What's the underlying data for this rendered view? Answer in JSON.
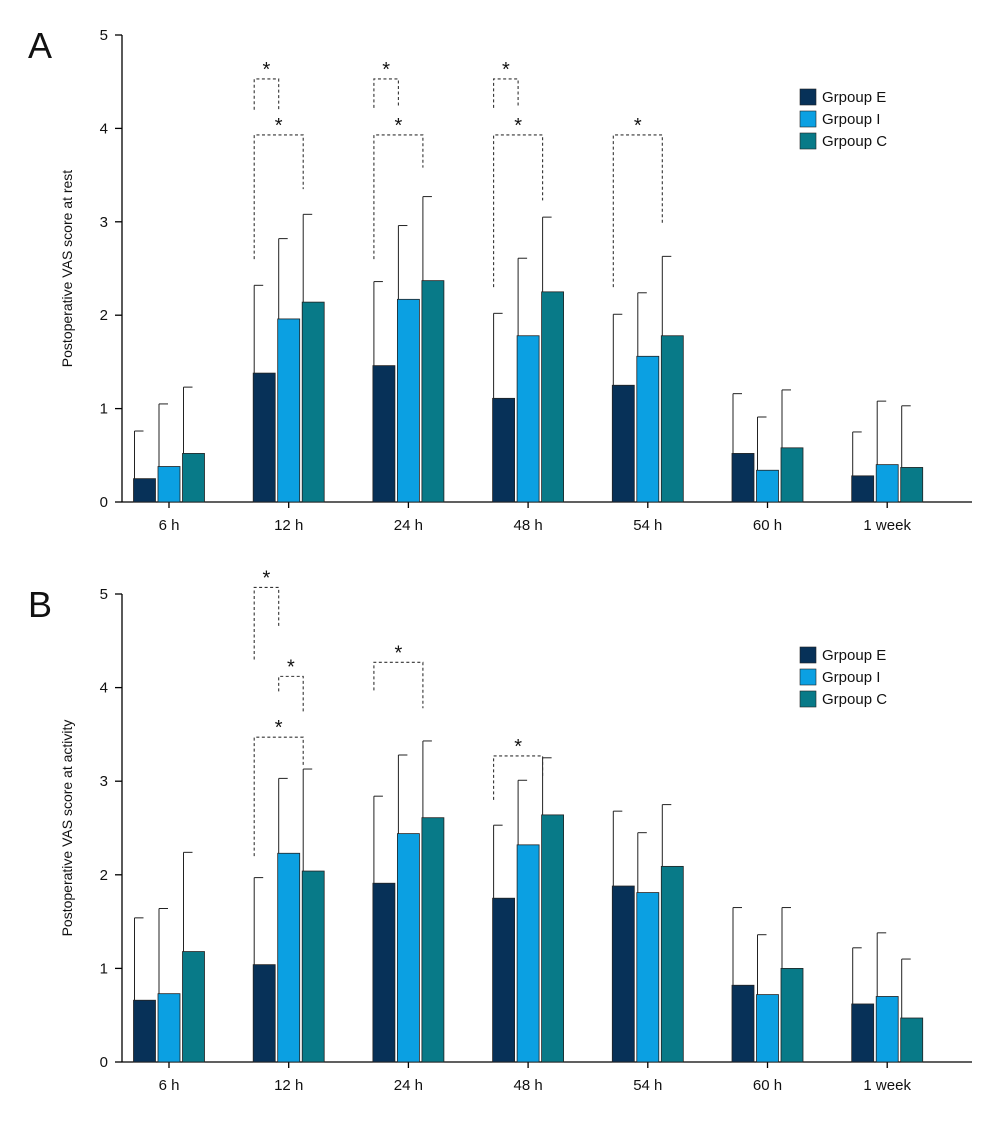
{
  "colors": {
    "E": "#073158",
    "I": "#0ba0e2",
    "C": "#087a88"
  },
  "chart_data": [
    {
      "type": "bar",
      "panel": "A",
      "title": "",
      "xlabel": "",
      "ylabel": "Postoperative VAS score at rest",
      "ylim": [
        0,
        5
      ],
      "yticks": [
        0,
        1,
        2,
        3,
        4,
        5
      ],
      "categories": [
        "6 h",
        "12 h",
        "24 h",
        "48 h",
        "54 h",
        "60 h",
        "1 week"
      ],
      "legend_position": "top-right",
      "series": [
        {
          "name": "Grpoup E",
          "key": "E",
          "values": [
            0.25,
            1.38,
            1.46,
            1.11,
            1.25,
            0.52,
            0.28
          ],
          "sd": [
            0.51,
            0.94,
            0.9,
            0.91,
            0.76,
            0.64,
            0.47
          ]
        },
        {
          "name": "Grpoup I",
          "key": "I",
          "values": [
            0.38,
            1.96,
            2.17,
            1.78,
            1.56,
            0.34,
            0.4
          ],
          "sd": [
            0.67,
            0.86,
            0.79,
            0.83,
            0.68,
            0.57,
            0.68
          ]
        },
        {
          "name": "Grpoup C",
          "key": "C",
          "values": [
            0.52,
            2.14,
            2.37,
            2.25,
            1.78,
            0.58,
            0.37
          ],
          "sd": [
            0.71,
            0.94,
            0.9,
            0.8,
            0.85,
            0.62,
            0.66
          ]
        }
      ],
      "significance": [
        {
          "category": "12 h",
          "from": "E",
          "to": "I",
          "y": 4.53,
          "left_end": 4.2,
          "right_end": 4.2,
          "label": "*"
        },
        {
          "category": "12 h",
          "from": "E",
          "to": "C",
          "y": 3.93,
          "left_end": 2.6,
          "right_end": 3.35,
          "label": "*"
        },
        {
          "category": "24 h",
          "from": "E",
          "to": "I",
          "y": 4.53,
          "left_end": 4.22,
          "right_end": 4.22,
          "label": "*"
        },
        {
          "category": "24 h",
          "from": "E",
          "to": "C",
          "y": 3.93,
          "left_end": 2.6,
          "right_end": 3.58,
          "label": "*"
        },
        {
          "category": "48 h",
          "from": "E",
          "to": "I",
          "y": 4.53,
          "left_end": 4.22,
          "right_end": 4.22,
          "label": "*"
        },
        {
          "category": "48 h",
          "from": "E",
          "to": "C",
          "y": 3.93,
          "left_end": 2.3,
          "right_end": 3.23,
          "label": "*"
        },
        {
          "category": "54 h",
          "from": "E",
          "to": "C",
          "y": 3.93,
          "left_end": 2.3,
          "right_end": 2.97,
          "label": "*"
        }
      ]
    },
    {
      "type": "bar",
      "panel": "B",
      "title": "",
      "xlabel": "",
      "ylabel": "Postoperative VAS score at activity",
      "ylim": [
        0,
        5
      ],
      "yticks": [
        0,
        1,
        2,
        3,
        4,
        5
      ],
      "categories": [
        "6 h",
        "12 h",
        "24 h",
        "48 h",
        "54 h",
        "60 h",
        "1 week"
      ],
      "legend_position": "top-right",
      "series": [
        {
          "name": "Grpoup E",
          "key": "E",
          "values": [
            0.66,
            1.04,
            1.91,
            1.75,
            1.88,
            0.82,
            0.62
          ],
          "sd": [
            0.88,
            0.93,
            0.93,
            0.78,
            0.8,
            0.83,
            0.6
          ]
        },
        {
          "name": "Grpoup I",
          "key": "I",
          "values": [
            0.73,
            2.23,
            2.44,
            2.32,
            1.81,
            0.72,
            0.7
          ],
          "sd": [
            0.91,
            0.8,
            0.84,
            0.69,
            0.64,
            0.64,
            0.68
          ]
        },
        {
          "name": "Grpoup C",
          "key": "C",
          "values": [
            1.18,
            2.04,
            2.61,
            2.64,
            2.09,
            1.0,
            0.47
          ],
          "sd": [
            1.06,
            1.09,
            0.82,
            0.61,
            0.66,
            0.65,
            0.63
          ]
        }
      ],
      "significance": [
        {
          "category": "12 h",
          "from": "E",
          "to": "I",
          "y": 5.07,
          "left_end": 4.3,
          "right_end": 4.65,
          "label": "*"
        },
        {
          "category": "12 h",
          "from": "I",
          "to": "C",
          "y": 4.12,
          "left_end": 3.96,
          "right_end": 3.72,
          "label": "*"
        },
        {
          "category": "12 h",
          "from": "E",
          "to": "C",
          "y": 3.47,
          "left_end": 2.2,
          "right_end": 3.17,
          "label": "*"
        },
        {
          "category": "24 h",
          "from": "E",
          "to": "C",
          "y": 4.27,
          "left_end": 3.97,
          "right_end": 3.78,
          "label": "*"
        },
        {
          "category": "48 h",
          "from": "E",
          "to": "C",
          "y": 3.27,
          "left_end": 2.8,
          "right_end": 3.05,
          "label": "*"
        }
      ]
    }
  ]
}
